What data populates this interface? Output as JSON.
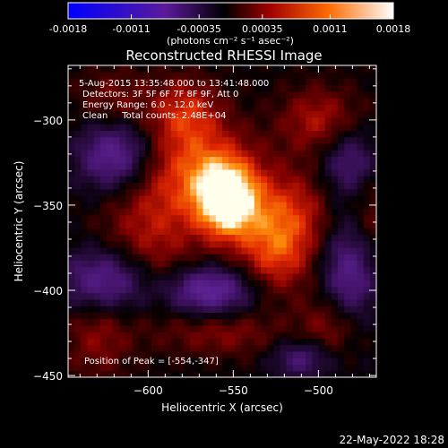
{
  "chart_data": {
    "type": "heatmap",
    "title": "Reconstructed RHESSI Image",
    "xlabel": "Heliocentric X (arcsec)",
    "ylabel": "Heliocentric Y (arcsec)",
    "xlim": [
      -647,
      -466
    ],
    "ylim": [
      -451,
      -268
    ],
    "x_ticks": [
      -600,
      -550,
      -500
    ],
    "y_ticks": [
      -300,
      -350,
      -400,
      -450
    ],
    "colorbar": {
      "label": "(photons cm⁻² s⁻¹ asec⁻²)",
      "range": [
        -0.0018,
        0.0018
      ],
      "ticks": [
        "-0.0018",
        "-0.0011",
        "-0.00035",
        "0.00035",
        "0.0011",
        "0.0018"
      ]
    },
    "info_lines": [
      "5-Aug-2015 13:35:48.000 to 13:41:48.000",
      "Detectors: 3F 5F 6F 7F 8F 9F, Att 0",
      "Energy Range: 6.0 - 12.0 keV",
      "Clean     Total counts: 2.48E+04"
    ],
    "peak_label": "Position of Peak = [-554,-347]",
    "peak": [
      -554,
      -347
    ],
    "grid": false,
    "sources": [
      {
        "x": -554,
        "y": -347,
        "sx": 12,
        "sy": 15,
        "amp": 0.0018
      },
      {
        "x": -568,
        "y": -330,
        "sx": 22,
        "sy": 20,
        "amp": 0.001
      },
      {
        "x": -520,
        "y": -355,
        "sx": 20,
        "sy": 18,
        "amp": 0.0009
      },
      {
        "x": -525,
        "y": -380,
        "sx": 15,
        "sy": 16,
        "amp": 0.0008
      },
      {
        "x": -578,
        "y": -295,
        "sx": 14,
        "sy": 14,
        "amp": 0.0008
      },
      {
        "x": -500,
        "y": -300,
        "sx": 16,
        "sy": 14,
        "amp": 0.0007
      },
      {
        "x": -490,
        "y": -420,
        "sx": 14,
        "sy": 14,
        "amp": 0.0007
      },
      {
        "x": -600,
        "y": -370,
        "sx": 20,
        "sy": 30,
        "amp": 0.0007
      },
      {
        "x": -630,
        "y": -420,
        "sx": 14,
        "sy": 22,
        "amp": 0.0006
      },
      {
        "x": -555,
        "y": -425,
        "sx": 24,
        "sy": 10,
        "amp": 0.0005
      },
      {
        "x": -620,
        "y": -290,
        "sx": 16,
        "sy": 14,
        "amp": 0.0005
      },
      {
        "x": -470,
        "y": -360,
        "sx": 10,
        "sy": 30,
        "amp": 0.0006
      },
      {
        "x": -620,
        "y": -320,
        "sx": 15,
        "sy": 15,
        "amp": -0.0012
      },
      {
        "x": -625,
        "y": -395,
        "sx": 18,
        "sy": 14,
        "amp": -0.0014
      },
      {
        "x": -565,
        "y": -400,
        "sx": 18,
        "sy": 10,
        "amp": -0.0013
      },
      {
        "x": -480,
        "y": -390,
        "sx": 12,
        "sy": 25,
        "amp": -0.0012
      },
      {
        "x": -480,
        "y": -325,
        "sx": 12,
        "sy": 14,
        "amp": -0.0009
      },
      {
        "x": -510,
        "y": -440,
        "sx": 12,
        "sy": 8,
        "amp": -0.0008
      }
    ]
  },
  "footer": {
    "timestamp": "22-May-2022 18:28"
  }
}
